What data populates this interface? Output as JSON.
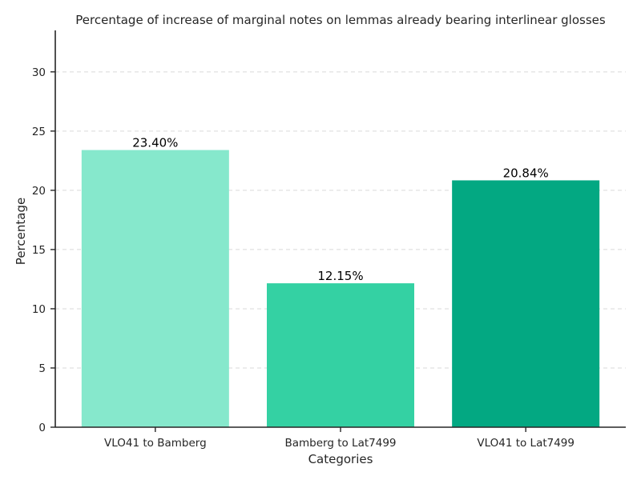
{
  "chart_data": {
    "type": "bar",
    "title": "Percentage of increase of marginal notes on lemmas already bearing interlinear glosses",
    "xlabel": "Categories",
    "ylabel": "Percentage",
    "categories": [
      "VLO41 to Bamberg",
      "Bamberg to Lat7499",
      "VLO41 to Lat7499"
    ],
    "values": [
      23.4,
      12.15,
      20.84
    ],
    "data_labels": [
      "23.40%",
      "12.15%",
      "20.84%"
    ],
    "colors": [
      "#86e8cc",
      "#34d1a3",
      "#03a882"
    ],
    "ylim": [
      0,
      33.5
    ],
    "yticks": [
      0,
      5,
      10,
      15,
      20,
      25,
      30
    ],
    "ytick_labels": [
      "0",
      "5",
      "10",
      "15",
      "20",
      "25",
      "30"
    ],
    "grid": "horizontal dashed",
    "legend": "none"
  }
}
